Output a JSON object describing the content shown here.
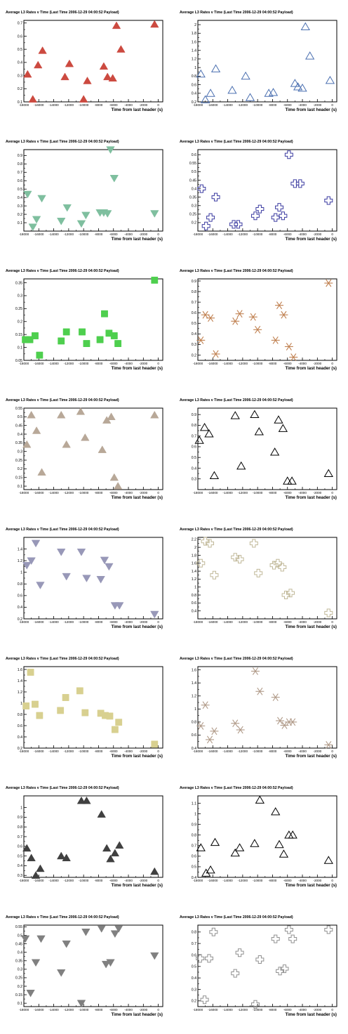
{
  "chart_data": [
    {
      "type": "scatter",
      "title": "Average L3 Rates v Time (Last Time 2006-12-29 04:00:52 Payload)",
      "xlabel": "Time from last header (s)",
      "ylabel": "",
      "xlim": [
        -18000,
        600
      ],
      "ylim": [
        0.1,
        0.72
      ],
      "xticks": [
        -18000,
        -16000,
        -14000,
        -12000,
        -10000,
        -8000,
        -6000,
        -4000,
        -2000,
        0
      ],
      "yticks": [
        0.1,
        0.2,
        0.3,
        0.4,
        0.5,
        0.6,
        0.7
      ],
      "marker": "triangle-up",
      "filled": true,
      "color": "#cc4a40",
      "x": [
        -17500,
        -16800,
        -16100,
        -15500,
        -12500,
        -11900,
        -10000,
        -9500,
        -7300,
        -6800,
        -6100,
        -5600,
        -5000,
        -500
      ],
      "y": [
        0.31,
        0.12,
        0.38,
        0.49,
        0.29,
        0.39,
        0.12,
        0.26,
        0.37,
        0.29,
        0.28,
        0.68,
        0.5,
        0.69
      ]
    },
    {
      "type": "scatter",
      "title": "Average L3 Rates v Time (Last Time 2006-12-29 04:00:52 Payload)",
      "xlabel": "Time from last header (s)",
      "ylabel": "",
      "xlim": [
        -18000,
        600
      ],
      "ylim": [
        0.2,
        2.1
      ],
      "xticks": [
        -18000,
        -16000,
        -14000,
        -12000,
        -10000,
        -8000,
        -6000,
        -4000,
        -2000,
        0
      ],
      "yticks": [
        0.2,
        0.4,
        0.6,
        0.8,
        1,
        1.2,
        1.4,
        1.6,
        1.8,
        2
      ],
      "marker": "triangle-up",
      "filled": false,
      "color": "#4a6fb0",
      "x": [
        -17600,
        -17000,
        -16300,
        -15600,
        -13400,
        -11600,
        -11000,
        -8500,
        -7900,
        -5000,
        -4600,
        -4000,
        -3600,
        -3000,
        -300
      ],
      "y": [
        0.85,
        0.25,
        0.4,
        0.97,
        0.47,
        0.8,
        0.3,
        0.4,
        0.42,
        0.63,
        0.55,
        0.52,
        1.95,
        1.27,
        0.7
      ]
    },
    {
      "type": "scatter",
      "title": "Average L3 Rates v Time (Last Time 2006-12-29 04:00:52 Payload)",
      "xlabel": "Time from last header (s)",
      "ylabel": "",
      "xlim": [
        -18000,
        600
      ],
      "ylim": [
        0,
        0.97
      ],
      "xticks": [
        -18000,
        -16000,
        -14000,
        -12000,
        -10000,
        -8000,
        -6000,
        -4000,
        -2000,
        0
      ],
      "yticks": [
        0.1,
        0.2,
        0.3,
        0.4,
        0.5,
        0.6,
        0.7,
        0.8,
        0.9
      ],
      "marker": "triangle-down",
      "filled": true,
      "color": "#7fbf9f",
      "x": [
        -17500,
        -16800,
        -16300,
        -15600,
        -13000,
        -12200,
        -10300,
        -9700,
        -7800,
        -7300,
        -6800,
        -6400,
        -5900,
        -500
      ],
      "y": [
        0.44,
        0.05,
        0.14,
        0.39,
        0.12,
        0.28,
        0.09,
        0.19,
        0.22,
        0.22,
        0.21,
        0.97,
        0.63,
        0.21
      ]
    },
    {
      "type": "scatter",
      "title": "Average L3 Rates v Time (Last Time 2006-12-29 04:00:52 Payload)",
      "xlabel": "Time from last header (s)",
      "ylabel": "",
      "xlim": [
        -18000,
        600
      ],
      "ylim": [
        0.15,
        0.63
      ],
      "xticks": [
        -18000,
        -16000,
        -14000,
        -12000,
        -10000,
        -8000,
        -6000,
        -4000,
        -2000,
        0
      ],
      "yticks": [
        0.2,
        0.25,
        0.3,
        0.35,
        0.4,
        0.45,
        0.5,
        0.55,
        0.6
      ],
      "marker": "cross",
      "filled": false,
      "color": "#3a3aa0",
      "x": [
        -17500,
        -16900,
        -16300,
        -15600,
        -13200,
        -12600,
        -10300,
        -9700,
        -7600,
        -7100,
        -6600,
        -5800,
        -5000,
        -4300,
        -500
      ],
      "y": [
        0.4,
        0.18,
        0.23,
        0.35,
        0.19,
        0.19,
        0.24,
        0.28,
        0.23,
        0.29,
        0.24,
        0.6,
        0.43,
        0.43,
        0.33
      ]
    },
    {
      "type": "scatter",
      "title": "Average L3 Rates v Time (Last Time 2006-12-29 04:00:52 Payload)",
      "xlabel": "Time from last header (s)",
      "ylabel": "",
      "xlim": [
        -18000,
        600
      ],
      "ylim": [
        0.05,
        0.365
      ],
      "xticks": [
        -18000,
        -16000,
        -14000,
        -12000,
        -10000,
        -8000,
        -6000,
        -4000,
        -2000,
        0
      ],
      "yticks": [
        0.05,
        0.1,
        0.15,
        0.2,
        0.25,
        0.3,
        0.35
      ],
      "marker": "square",
      "filled": true,
      "color": "#4ecf4e",
      "x": [
        -17800,
        -17200,
        -16500,
        -15900,
        -13000,
        -12300,
        -10200,
        -9600,
        -7800,
        -7200,
        -6600,
        -5900,
        -5400,
        -500
      ],
      "y": [
        0.13,
        0.13,
        0.145,
        0.07,
        0.125,
        0.16,
        0.16,
        0.115,
        0.13,
        0.23,
        0.155,
        0.145,
        0.115,
        0.36
      ]
    },
    {
      "type": "scatter",
      "title": "Average L3 Rates v Time (Last Time 2006-12-29 04:00:52 Payload)",
      "xlabel": "Time from last header (s)",
      "ylabel": "",
      "xlim": [
        -18000,
        600
      ],
      "ylim": [
        0.15,
        0.92
      ],
      "xticks": [
        -18000,
        -16000,
        -14000,
        -12000,
        -10000,
        -8000,
        -6000,
        -4000,
        -2000,
        0
      ],
      "yticks": [
        0.2,
        0.3,
        0.4,
        0.5,
        0.6,
        0.7,
        0.8,
        0.9
      ],
      "marker": "star",
      "filled": false,
      "color": "#c08050",
      "x": [
        -17600,
        -17000,
        -16300,
        -15600,
        -13000,
        -12400,
        -10600,
        -10000,
        -7600,
        -7100,
        -6500,
        -5800,
        -5200,
        -500
      ],
      "y": [
        0.34,
        0.58,
        0.55,
        0.21,
        0.52,
        0.59,
        0.56,
        0.44,
        0.34,
        0.67,
        0.58,
        0.28,
        0.18,
        0.88
      ]
    },
    {
      "type": "scatter",
      "title": "Average L3 Rates v Time (Last Time 2006-12-29 04:00:52 Payload)",
      "xlabel": "Time from last header (s)",
      "ylabel": "",
      "xlim": [
        -18000,
        600
      ],
      "ylim": [
        0.08,
        0.55
      ],
      "xticks": [
        -18000,
        -16000,
        -14000,
        -12000,
        -10000,
        -8000,
        -6000,
        -4000,
        -2000,
        0
      ],
      "yticks": [
        0.1,
        0.15,
        0.2,
        0.25,
        0.3,
        0.35,
        0.4,
        0.45,
        0.5,
        0.55
      ],
      "marker": "triangle-up",
      "filled": true,
      "color": "#b8a898",
      "x": [
        -17600,
        -17000,
        -16300,
        -15600,
        -13000,
        -12300,
        -10400,
        -9800,
        -7500,
        -6900,
        -6300,
        -5900,
        -5400,
        -500
      ],
      "y": [
        0.34,
        0.51,
        0.42,
        0.18,
        0.51,
        0.34,
        0.53,
        0.38,
        0.31,
        0.48,
        0.5,
        0.15,
        0.1,
        0.51
      ]
    },
    {
      "type": "scatter",
      "title": "Average L3 Rates v Time (Last Time 2006-12-29 04:00:52 Payload)",
      "xlabel": "Time from last header (s)",
      "ylabel": "",
      "xlim": [
        -18000,
        600
      ],
      "ylim": [
        0.2,
        0.96
      ],
      "xticks": [
        -18000,
        -16000,
        -14000,
        -12000,
        -10000,
        -8000,
        -6000,
        -4000,
        -2000,
        0
      ],
      "yticks": [
        0.3,
        0.4,
        0.5,
        0.6,
        0.7,
        0.8,
        0.9
      ],
      "marker": "triangle-up",
      "filled": false,
      "color": "#000000",
      "x": [
        -17800,
        -17100,
        -16500,
        -15800,
        -13000,
        -12200,
        -10400,
        -9800,
        -7700,
        -7200,
        -6600,
        -6000,
        -5400,
        -500
      ],
      "y": [
        0.66,
        0.78,
        0.72,
        0.33,
        0.89,
        0.42,
        0.9,
        0.74,
        0.55,
        0.85,
        0.77,
        0.28,
        0.28,
        0.35
      ]
    },
    {
      "type": "scatter",
      "title": "Average L3 Rates v Time (Last Time 2006-12-29 04:00:52 Payload)",
      "xlabel": "Time from last header (s)",
      "ylabel": "",
      "xlim": [
        -18000,
        600
      ],
      "ylim": [
        0.2,
        1.6
      ],
      "xticks": [
        -18000,
        -16000,
        -14000,
        -12000,
        -10000,
        -8000,
        -6000,
        -4000,
        -2000,
        0
      ],
      "yticks": [
        0.2,
        0.4,
        0.6,
        0.8,
        1,
        1.2,
        1.4
      ],
      "marker": "triangle-down",
      "filled": true,
      "color": "#9898b8",
      "x": [
        -17600,
        -17000,
        -16400,
        -15800,
        -13000,
        -12300,
        -10300,
        -9600,
        -7700,
        -7200,
        -6600,
        -5800,
        -5200,
        -500
      ],
      "y": [
        1.12,
        1.2,
        1.5,
        0.78,
        1.35,
        0.93,
        1.35,
        0.9,
        0.88,
        1.21,
        1.1,
        0.43,
        0.43,
        0.28
      ]
    },
    {
      "type": "scatter",
      "title": "Average L3 Rates v Time (Last Time 2006-12-29 04:00:52 Payload)",
      "xlabel": "Time from last header (s)",
      "ylabel": "",
      "xlim": [
        -18000,
        600
      ],
      "ylim": [
        0.2,
        2.25
      ],
      "xticks": [
        -18000,
        -16000,
        -14000,
        -12000,
        -10000,
        -8000,
        -6000,
        -4000,
        -2000,
        0
      ],
      "yticks": [
        0.4,
        0.6,
        0.8,
        1,
        1.2,
        1.4,
        1.6,
        1.8,
        2,
        2.2
      ],
      "marker": "cross",
      "filled": false,
      "color": "#c0b898",
      "x": [
        -17600,
        -17000,
        -16400,
        -15800,
        -13000,
        -12400,
        -10500,
        -9900,
        -7800,
        -7300,
        -6700,
        -6200,
        -5600,
        -500
      ],
      "y": [
        1.6,
        2.15,
        2.1,
        1.3,
        1.75,
        1.7,
        2.1,
        1.35,
        1.55,
        1.6,
        1.5,
        0.8,
        0.85,
        0.35
      ]
    },
    {
      "type": "scatter",
      "title": "Average L3 Rates v Time (Last Time 2006-12-29 04:00:52 Payload)",
      "xlabel": "Time from last header (s)",
      "ylabel": "",
      "xlim": [
        -18000,
        600
      ],
      "ylim": [
        0.2,
        1.65
      ],
      "xticks": [
        -18000,
        -16000,
        -14000,
        -12000,
        -10000,
        -8000,
        -6000,
        -4000,
        -2000,
        0
      ],
      "yticks": [
        0.2,
        0.4,
        0.6,
        0.8,
        1,
        1.2,
        1.4,
        1.6
      ],
      "marker": "square",
      "filled": true,
      "color": "#d8d090",
      "x": [
        -17700,
        -17100,
        -16500,
        -15900,
        -13100,
        -12400,
        -10500,
        -9800,
        -7700,
        -7100,
        -6500,
        -5800,
        -5300,
        -500
      ],
      "y": [
        0.95,
        1.55,
        0.98,
        0.78,
        0.87,
        1.1,
        1.22,
        0.83,
        0.82,
        0.78,
        0.77,
        0.53,
        0.66,
        0.27
      ]
    },
    {
      "type": "scatter",
      "title": "Average L3 Rates v Time (Last Time 2006-12-29 04:00:52 Payload)",
      "xlabel": "Time from last header (s)",
      "ylabel": "",
      "xlim": [
        -18000,
        600
      ],
      "ylim": [
        0.4,
        1.65
      ],
      "xticks": [
        -18000,
        -16000,
        -14000,
        -12000,
        -10000,
        -8000,
        -6000,
        -4000,
        -2000,
        0
      ],
      "yticks": [
        0.4,
        0.6,
        0.8,
        1,
        1.2,
        1.4,
        1.6
      ],
      "marker": "star",
      "filled": false,
      "color": "#b09a88",
      "x": [
        -17600,
        -17000,
        -16400,
        -15800,
        -13000,
        -12300,
        -10300,
        -9700,
        -7600,
        -7000,
        -6400,
        -5800,
        -5300,
        -500
      ],
      "y": [
        0.74,
        1.06,
        0.53,
        0.66,
        0.78,
        0.68,
        1.58,
        1.27,
        1.18,
        0.82,
        0.75,
        0.8,
        0.8,
        0.45
      ]
    },
    {
      "type": "scatter",
      "title": "Average L3 Rates v Time (Last Time 2006-12-29 04:00:52 Payload)",
      "xlabel": "Time from last header (s)",
      "ylabel": "",
      "xlim": [
        -18000,
        600
      ],
      "ylim": [
        0.28,
        1.12
      ],
      "xticks": [
        -18000,
        -16000,
        -14000,
        -12000,
        -10000,
        -8000,
        -6000,
        -4000,
        -2000,
        0
      ],
      "yticks": [
        0.3,
        0.4,
        0.5,
        0.6,
        0.7,
        0.8,
        0.9,
        1
      ],
      "marker": "triangle-up",
      "filled": true,
      "color": "#404040",
      "x": [
        -17600,
        -17000,
        -16400,
        -15800,
        -13000,
        -12300,
        -10300,
        -9600,
        -7600,
        -6900,
        -6400,
        -5800,
        -5200,
        -500
      ],
      "y": [
        0.58,
        0.48,
        0.3,
        0.37,
        0.5,
        0.48,
        1.07,
        1.07,
        0.93,
        0.58,
        0.47,
        0.53,
        0.61,
        0.34
      ]
    },
    {
      "type": "scatter",
      "title": "Average L3 Rates v Time (Last Time 2006-12-29 04:00:52 Payload)",
      "xlabel": "Time from last header (s)",
      "ylabel": "",
      "xlim": [
        -18000,
        600
      ],
      "ylim": [
        0.4,
        1.17
      ],
      "xticks": [
        -18000,
        -16000,
        -14000,
        -12000,
        -10000,
        -8000,
        -6000,
        -4000,
        -2000,
        0
      ],
      "yticks": [
        0.4,
        0.5,
        0.6,
        0.7,
        0.8,
        0.9,
        1,
        1.1
      ],
      "marker": "triangle-up",
      "filled": false,
      "color": "#000000",
      "x": [
        -17600,
        -16900,
        -16300,
        -15700,
        -13000,
        -12400,
        -10400,
        -9700,
        -7600,
        -7100,
        -6500,
        -5800,
        -5300,
        -500
      ],
      "y": [
        0.68,
        0.44,
        0.47,
        0.73,
        0.63,
        0.68,
        0.72,
        1.13,
        1.02,
        0.71,
        0.62,
        0.8,
        0.8,
        0.56
      ]
    },
    {
      "type": "scatter",
      "title": "Average L3 Rates v Time (Last Time 2006-12-29 04:00:52 Payload)",
      "xlabel": "Time from last header (s)",
      "ylabel": "",
      "xlim": [
        -18000,
        600
      ],
      "ylim": [
        0.08,
        0.56
      ],
      "xticks": [
        -18000,
        -16000,
        -14000,
        -12000,
        -10000,
        -8000,
        -6000,
        -4000,
        -2000,
        0
      ],
      "yticks": [
        0.1,
        0.15,
        0.2,
        0.25,
        0.3,
        0.35,
        0.4,
        0.45,
        0.5,
        0.55
      ],
      "marker": "triangle-down",
      "filled": true,
      "color": "#808080",
      "x": [
        -17800,
        -17100,
        -16400,
        -15700,
        -13000,
        -12300,
        -10300,
        -9700,
        -7600,
        -7000,
        -6400,
        -5800,
        -5300,
        -500
      ],
      "y": [
        0.48,
        0.16,
        0.34,
        0.48,
        0.28,
        0.45,
        0.1,
        0.52,
        0.54,
        0.33,
        0.34,
        0.51,
        0.54,
        0.38
      ]
    },
    {
      "type": "scatter",
      "title": "Average L3 Rates v Time (Last Time 2006-12-29 04:00:52 Payload)",
      "xlabel": "Time from last header (s)",
      "ylabel": "",
      "xlim": [
        -18000,
        600
      ],
      "ylim": [
        0.15,
        0.86
      ],
      "xticks": [
        -18000,
        -16000,
        -14000,
        -12000,
        -10000,
        -8000,
        -6000,
        -4000,
        -2000,
        0
      ],
      "yticks": [
        0.2,
        0.3,
        0.4,
        0.5,
        0.6,
        0.7,
        0.8
      ],
      "marker": "cross",
      "filled": false,
      "color": "#909090",
      "x": [
        -17700,
        -17100,
        -16500,
        -15900,
        -13000,
        -12400,
        -10300,
        -9700,
        -7600,
        -7000,
        -6400,
        -5800,
        -5300,
        -500
      ],
      "y": [
        0.57,
        0.21,
        0.57,
        0.8,
        0.44,
        0.62,
        0.17,
        0.56,
        0.74,
        0.46,
        0.48,
        0.82,
        0.74,
        0.82
      ]
    }
  ]
}
